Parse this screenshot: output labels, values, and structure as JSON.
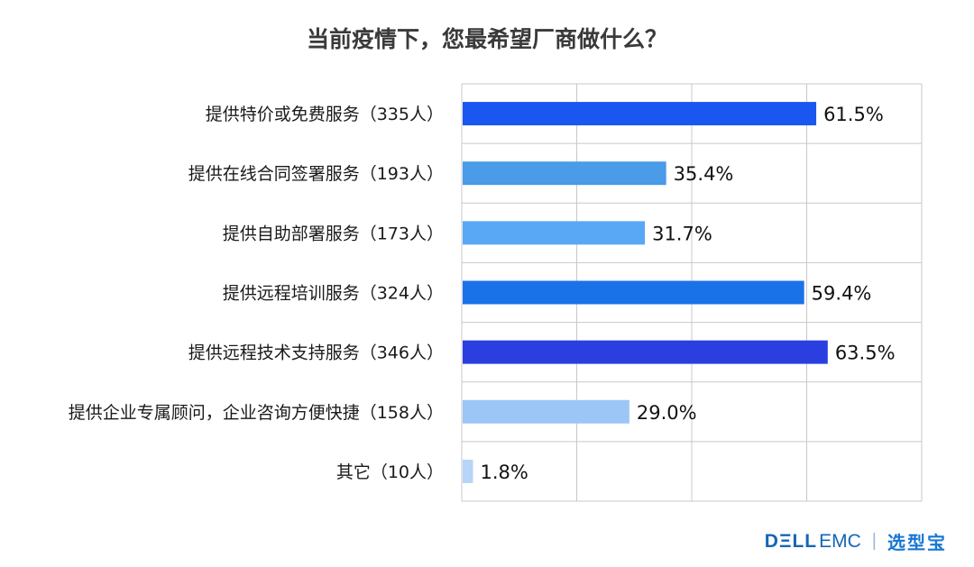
{
  "chart_data": {
    "type": "bar",
    "orientation": "horizontal",
    "title": "当前疫情下，您最希望厂商做什么？",
    "categories": [
      "提供特价或免费服务（335人）",
      "提供在线合同签署服务（193人）",
      "提供自助部署服务（173人）",
      "提供远程培训服务（324人）",
      "提供远程技术支持服务（346人）",
      "提供企业专属顾问，企业咨询方便快捷（158人）",
      "其它（10人）"
    ],
    "values": [
      61.5,
      35.4,
      31.7,
      59.4,
      63.5,
      29.0,
      1.8
    ],
    "value_labels": [
      "61.5%",
      "35.4%",
      "31.7%",
      "59.4%",
      "63.5%",
      "29.0%",
      "1.8%"
    ],
    "bar_colors": [
      "#1a56f0",
      "#4a9be8",
      "#58a8f5",
      "#1a72e8",
      "#2b3fe0",
      "#9cc6f5",
      "#b6d5f7"
    ],
    "xlim": [
      0,
      80
    ],
    "grid": true,
    "xlabel": "",
    "ylabel": ""
  },
  "footer": {
    "brand_dell": "DΞLL",
    "brand_emc": "EMC",
    "separator": "|",
    "brand_xxb": "选型宝"
  }
}
